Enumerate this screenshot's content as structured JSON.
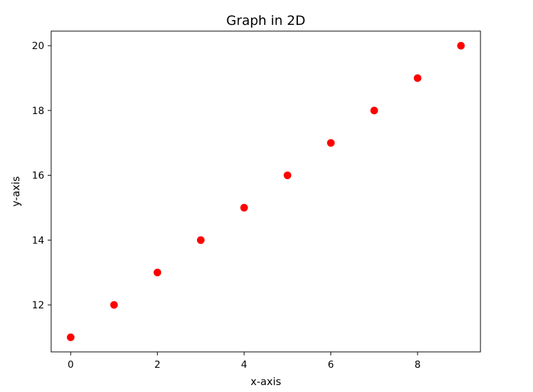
{
  "chart_data": {
    "type": "scatter",
    "title": "Graph in 2D",
    "xlabel": "x-axis",
    "ylabel": "y-axis",
    "x": [
      0,
      1,
      2,
      3,
      4,
      5,
      6,
      7,
      8,
      9
    ],
    "y": [
      11,
      12,
      13,
      14,
      15,
      16,
      17,
      18,
      19,
      20
    ],
    "xlim": [
      -0.45,
      9.45
    ],
    "ylim": [
      10.55,
      20.45
    ],
    "xticks": [
      0,
      2,
      4,
      6,
      8
    ],
    "yticks": [
      12,
      14,
      16,
      18,
      20
    ],
    "grid": false,
    "marker_color": "#ff0000"
  }
}
